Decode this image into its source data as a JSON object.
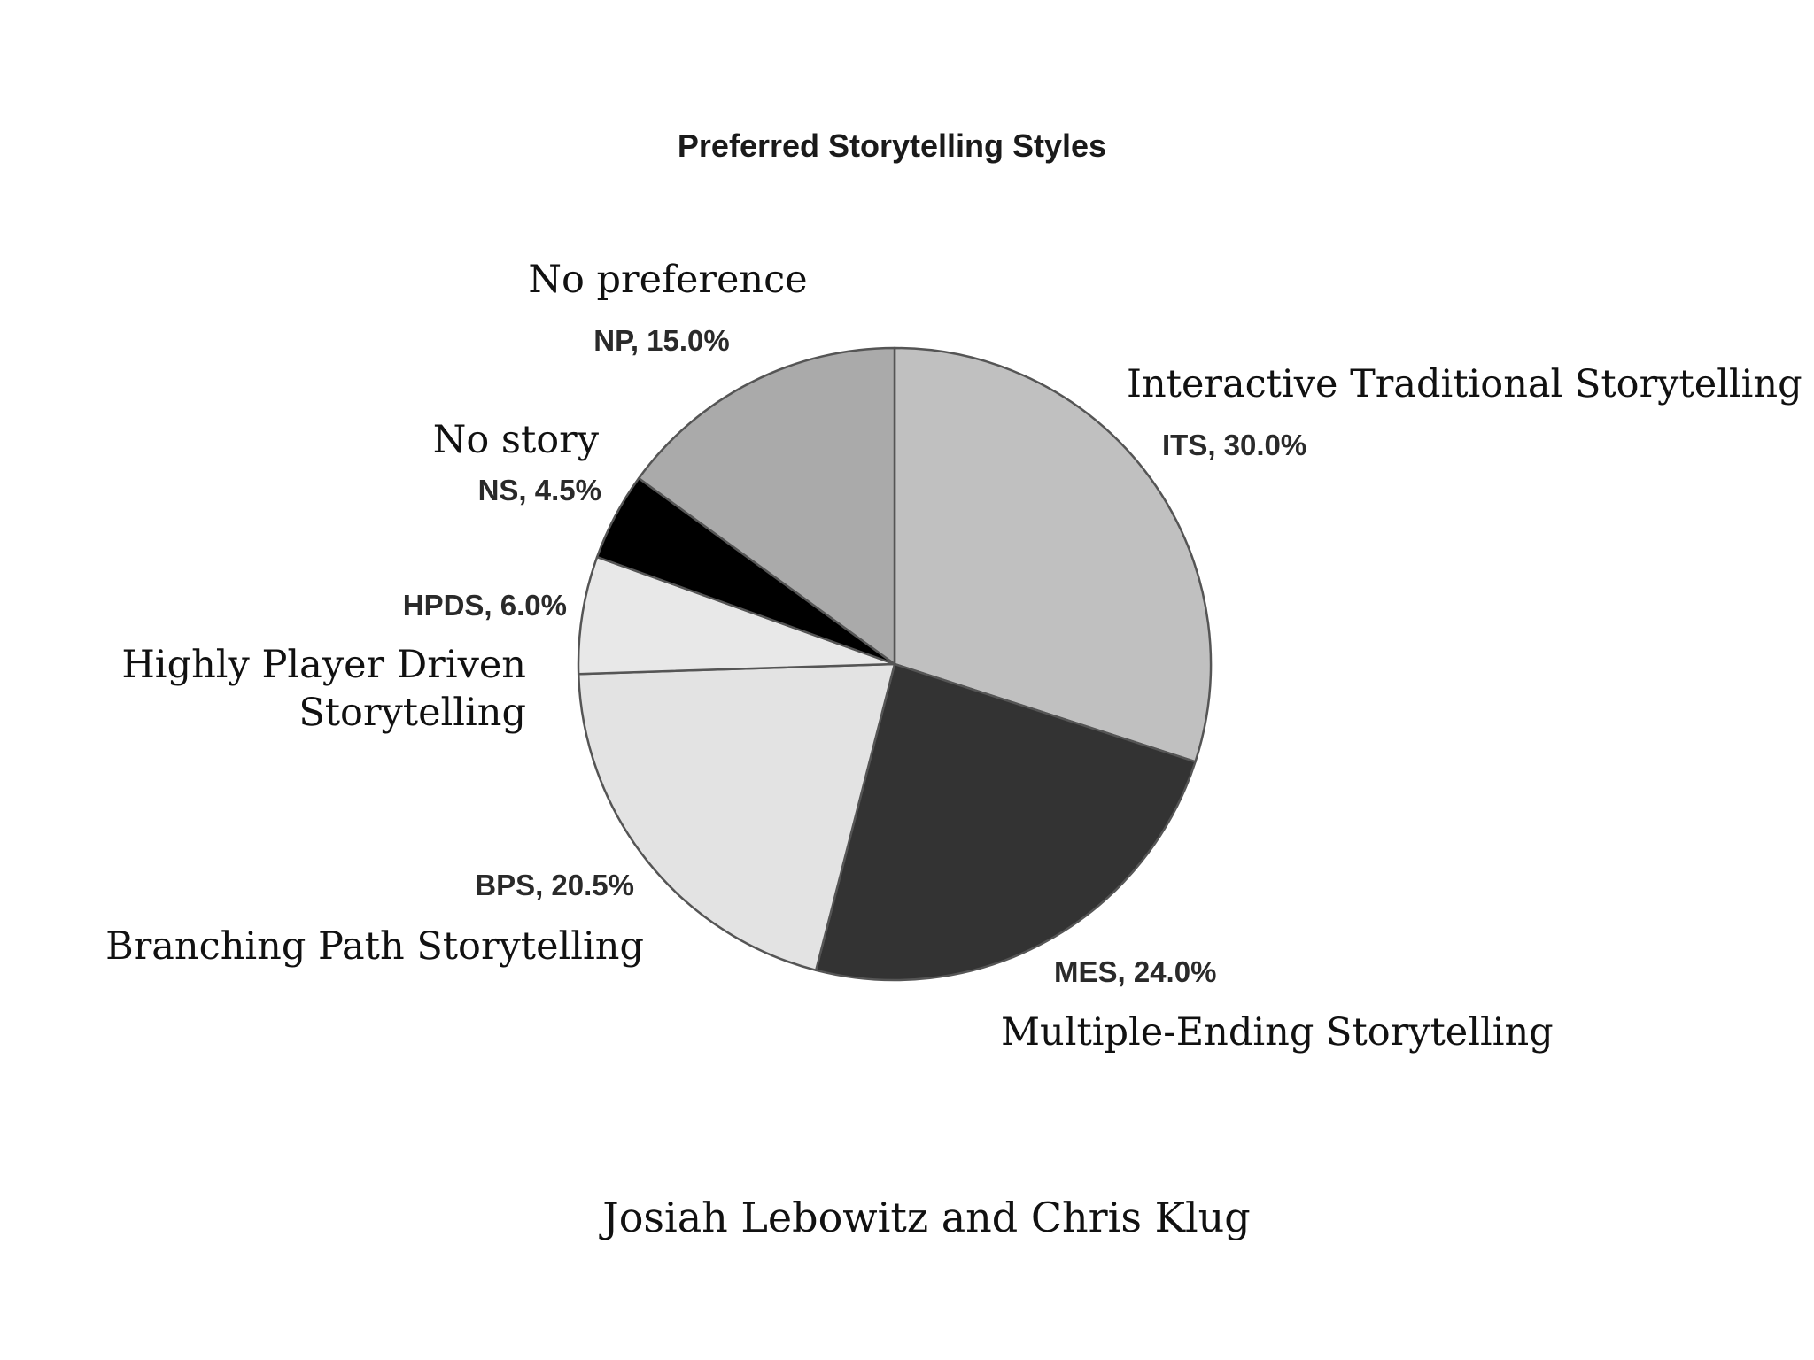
{
  "chart_data": {
    "type": "pie",
    "title": "Preferred Storytelling Styles",
    "slices": [
      {
        "abbr": "ITS",
        "label": "ITS, 30.0%",
        "value": 30.0,
        "full_name": "Interactive Traditional Storytelling",
        "color": "#c0c0c0"
      },
      {
        "abbr": "MES",
        "label": "MES, 24.0%",
        "value": 24.0,
        "full_name": "Multiple-Ending Storytelling",
        "color": "#333333"
      },
      {
        "abbr": "BPS",
        "label": "BPS, 20.5%",
        "value": 20.5,
        "full_name": "Branching Path Storytelling",
        "color": "#e3e3e3"
      },
      {
        "abbr": "HPDS",
        "label": "HPDS, 6.0%",
        "value": 6.0,
        "full_name": "Highly Player Driven Storytelling",
        "color": "#e8e8e8"
      },
      {
        "abbr": "NS",
        "label": "NS, 4.5%",
        "value": 4.5,
        "full_name": "No story",
        "color": "#000000"
      },
      {
        "abbr": "NP",
        "label": "NP, 15.0%",
        "value": 15.0,
        "full_name": "No preference",
        "color": "#aaaaaa"
      }
    ],
    "start_angle": "12 o'clock",
    "direction": "clockwise"
  },
  "captions": {
    "its_line1": "Interactive Traditional Storytelling",
    "mes_line1": "Multiple-Ending Storytelling",
    "bps_line1": "Branching Path Storytelling",
    "hpds_line1": "Highly Player Driven",
    "hpds_line2": "Storytelling",
    "ns_line1": "No story",
    "np_line1": "No preference"
  },
  "credit": "Josiah Lebowitz and Chris Klug"
}
